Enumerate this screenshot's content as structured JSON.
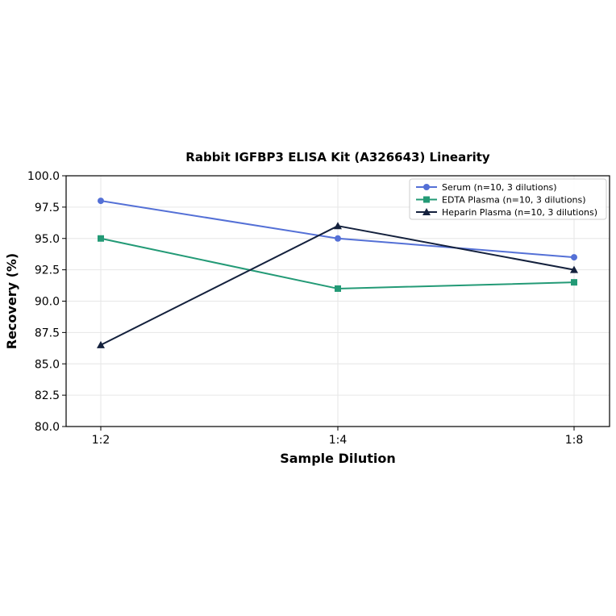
{
  "chart_data": {
    "type": "line",
    "title": "Rabbit IGFBP3 ELISA Kit (A326643) Linearity",
    "xlabel": "Sample Dilution",
    "ylabel": "Recovery (%)",
    "categories": [
      "1:2",
      "1:4",
      "1:8"
    ],
    "ylim": [
      80.0,
      100.0
    ],
    "yticks": [
      "80.0",
      "82.5",
      "85.0",
      "87.5",
      "90.0",
      "92.5",
      "95.0",
      "97.5",
      "100.0"
    ],
    "grid": true,
    "legend_position": "top-right",
    "series": [
      {
        "name": "Serum (n=10, 3 dilutions)",
        "values": [
          98.0,
          95.0,
          93.5
        ],
        "color": "#5470d6",
        "marker": "circle"
      },
      {
        "name": "EDTA Plasma (n=10, 3 dilutions)",
        "values": [
          95.0,
          91.0,
          91.5
        ],
        "color": "#239a76",
        "marker": "square"
      },
      {
        "name": "Heparin Plasma (n=10, 3 dilutions)",
        "values": [
          86.5,
          96.0,
          92.5
        ],
        "color": "#14213d",
        "marker": "triangle"
      }
    ]
  }
}
